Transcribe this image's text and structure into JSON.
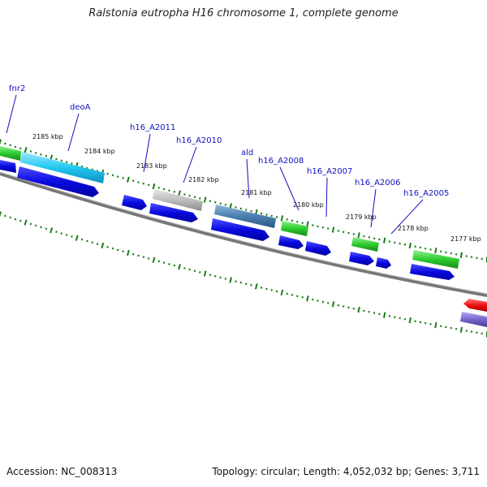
{
  "title": "Ralstonia eutropha H16 chromosome 1, complete genome",
  "footer": {
    "accession": "Accession: NC_008313",
    "topology": "Topology: circular; Length: 4,052,032 bp; Genes: 3,711"
  },
  "ticks": [
    "2185 kbp",
    "2184 kbp",
    "2183 kbp",
    "2182 kbp",
    "2181 kbp",
    "2180 kbp",
    "2179 kbp",
    "2178 kbp",
    "2177 kbp"
  ],
  "gene_labels": [
    "fnr2",
    "deoA",
    "h16_A2011",
    "h16_A2010",
    "ald",
    "h16_A2008",
    "h16_A2007",
    "h16_A2006",
    "h16_A2005"
  ],
  "colors": {
    "backbone": "#777777",
    "tick": "#1a7a1a",
    "cds": "#0a0ae0",
    "label": "#1010c0",
    "green_feature": "#2ecc2e",
    "cyan_feature": "#22c8f0",
    "gray_feature": "#bdbdbd",
    "steel_feature": "#4a7fb0",
    "red_feature": "#ee1111",
    "purple_feature": "#7766cc"
  }
}
